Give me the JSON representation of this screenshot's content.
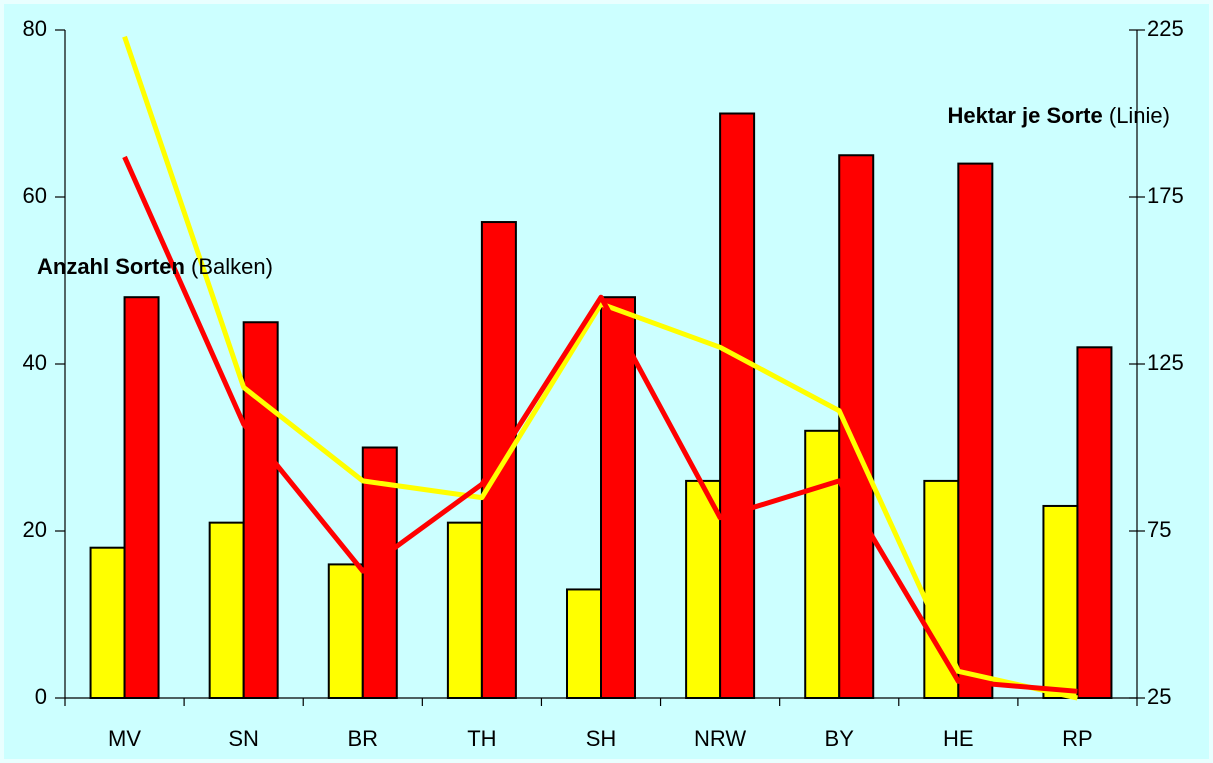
{
  "chart_data": {
    "type": "bar",
    "categories": [
      "MV",
      "SN",
      "BR",
      "TH",
      "SH",
      "NRW",
      "BY",
      "HE",
      "RP"
    ],
    "series": [
      {
        "type": "bar",
        "color": "#ffff00",
        "values": [
          18,
          21,
          16,
          21,
          13,
          26,
          32,
          26,
          23
        ]
      },
      {
        "type": "bar",
        "color": "#ff0000",
        "values": [
          48,
          45,
          30,
          57,
          48,
          70,
          65,
          64,
          42
        ]
      },
      {
        "type": "line",
        "axis": "y2",
        "color": "#ffff00",
        "values": [
          223,
          118,
          90,
          85,
          143,
          130,
          111,
          33,
          25
        ]
      },
      {
        "type": "line",
        "axis": "y2",
        "color": "#ff0000",
        "values": [
          187,
          107,
          63,
          89,
          145,
          79,
          90,
          30,
          27
        ]
      }
    ],
    "ylim": [
      0,
      80
    ],
    "yticks": [
      0,
      20,
      40,
      60,
      80
    ],
    "y2lim": [
      25,
      225
    ],
    "y2ticks": [
      25,
      75,
      125,
      175,
      225
    ],
    "grid": false,
    "annotations": [
      {
        "bold": "Anzahl Sorten",
        "text": " (Balken)"
      },
      {
        "bold": "Hektar je Sorte",
        "text": " (Linie)"
      }
    ]
  }
}
